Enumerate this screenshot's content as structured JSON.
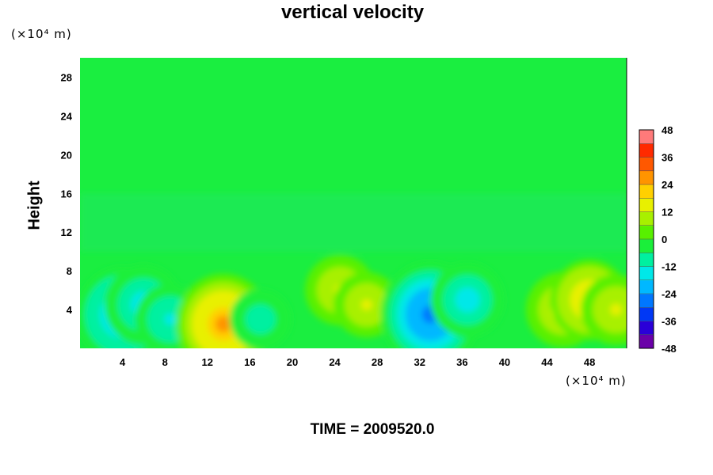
{
  "title": "vertical velocity",
  "time_label": "TIME = 2009520.0",
  "chart_data": {
    "type": "heatmap",
    "title": "vertical velocity",
    "xlabel": "",
    "ylabel": "Height",
    "x_unit": "(×10⁴ m)",
    "y_unit": "(×10⁴ m)",
    "xlim": [
      0,
      51.5
    ],
    "ylim": [
      0,
      30
    ],
    "x_ticks": [
      "4",
      "8",
      "12",
      "16",
      "20",
      "24",
      "28",
      "32",
      "36",
      "40",
      "44",
      "48"
    ],
    "y_ticks": [
      "4",
      "8",
      "12",
      "16",
      "20",
      "24",
      "28"
    ],
    "colorbar": {
      "range": [
        -48,
        48
      ],
      "ticks": [
        "48",
        "36",
        "24",
        "12",
        "0",
        "-12",
        "-24",
        "-36",
        "-48"
      ],
      "colors": [
        "#6a00a8",
        "#2a00d8",
        "#0038f5",
        "#0077ff",
        "#00b8ff",
        "#00e8e8",
        "#00f0a0",
        "#1aef3a",
        "#58f000",
        "#a8f000",
        "#e8f000",
        "#ffd000",
        "#ff9400",
        "#ff5800",
        "#ff2a00",
        "#ff7a7a"
      ]
    },
    "features": [
      {
        "x": 4.0,
        "y": 3.5,
        "w": -24
      },
      {
        "x": 6.0,
        "y": 4.5,
        "w": -18
      },
      {
        "x": 8.5,
        "y": 3.0,
        "w": -14
      },
      {
        "x": 13.5,
        "y": 2.5,
        "w": 26
      },
      {
        "x": 17.0,
        "y": 3.0,
        "w": -10
      },
      {
        "x": 24.5,
        "y": 6.0,
        "w": 14
      },
      {
        "x": 27.0,
        "y": 4.5,
        "w": 12
      },
      {
        "x": 33.0,
        "y": 3.5,
        "w": -28
      },
      {
        "x": 36.5,
        "y": 5.0,
        "w": -16
      },
      {
        "x": 45.5,
        "y": 4.0,
        "w": 16
      },
      {
        "x": 48.0,
        "y": 5.0,
        "w": 18
      },
      {
        "x": 50.5,
        "y": 4.0,
        "w": 14
      }
    ]
  }
}
